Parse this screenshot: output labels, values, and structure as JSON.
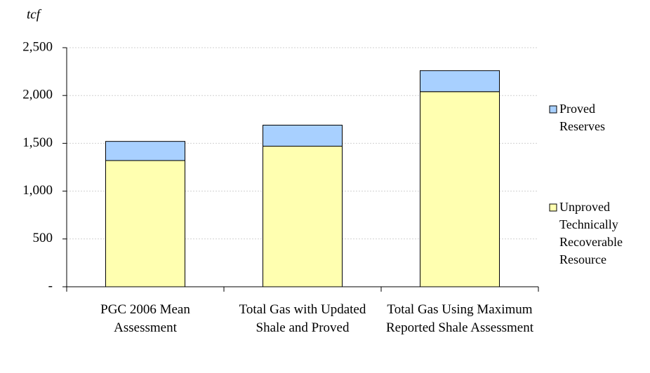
{
  "chart_data": {
    "type": "stacked_bar",
    "y_label": "tcf",
    "categories": [
      "PGC 2006 Mean Assessment",
      "Total Gas with Updated Shale and Proved",
      "Total Gas Using Maximum Reported Shale Assessment"
    ],
    "series": [
      {
        "name": "Unproved Technically Recoverable Resource",
        "color": "#ffffb0",
        "values": [
          1320,
          1470,
          2040
        ]
      },
      {
        "name": "Proved Reserves",
        "color": "#a8d0ff",
        "values": [
          200,
          220,
          220
        ]
      }
    ],
    "ylim": [
      0,
      2500
    ],
    "yticks": [
      {
        "value": 0,
        "label": "-"
      },
      500,
      {
        "value": 1000,
        "label": "1,000"
      },
      {
        "value": 1500,
        "label": "1,500"
      },
      {
        "value": 2000,
        "label": "2,000"
      },
      {
        "value": 2500,
        "label": "2,500"
      }
    ],
    "grid": true
  }
}
